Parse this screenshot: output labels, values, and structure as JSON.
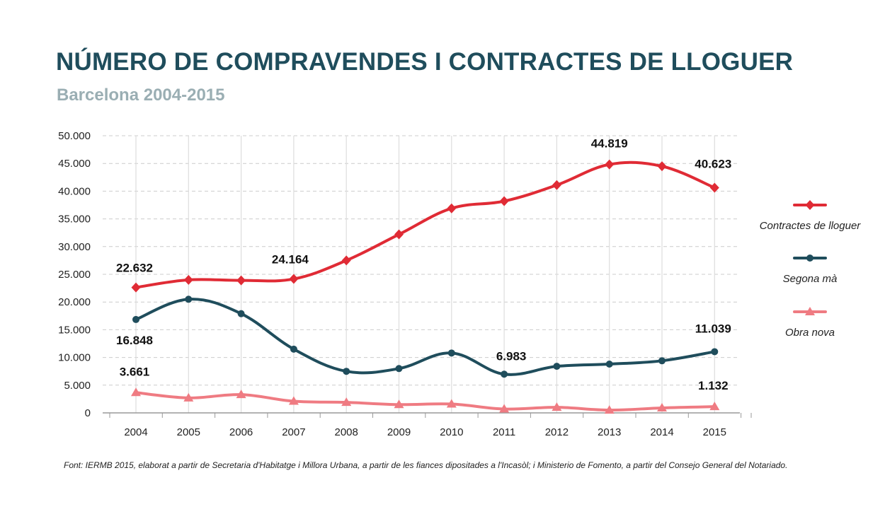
{
  "header": {
    "title": "NÚMERO DE COMPRAVENDES I CONTRACTES DE LLOGUER",
    "subtitle": "Barcelona 2004-2015"
  },
  "footer": {
    "source": "Font: IERMB 2015, elaborat a partir de Secretaria d'Habitatge i Millora Urbana, a partir de les fiances dipositades a l'Incasòl; i Ministerio de Fomento, a partir del Consejo General del Notariado."
  },
  "chart_data": {
    "type": "line",
    "title": "NÚMERO DE COMPRAVENDES I CONTRACTES DE LLOGUER",
    "subtitle": "Barcelona 2004-2015",
    "x": [
      "2004",
      "2005",
      "2006",
      "2007",
      "2008",
      "2009",
      "2010",
      "2011",
      "2012",
      "2013",
      "2014",
      "2015"
    ],
    "ylim": [
      0,
      50000
    ],
    "yticks": [
      0,
      5000,
      10000,
      15000,
      20000,
      25000,
      30000,
      35000,
      40000,
      45000,
      50000
    ],
    "ytick_labels": [
      "0",
      "5.000",
      "10.000",
      "15.000",
      "20.000",
      "25.000",
      "30.000",
      "35.000",
      "40.000",
      "45.000",
      "50.000"
    ],
    "grid": "horizontal dashed + vertical solid",
    "legend_position": "right",
    "series": [
      {
        "name": "Contractes de lloguer",
        "color": "#e02b35",
        "marker": "diamond",
        "values": [
          22632,
          24000,
          23900,
          24164,
          27500,
          32200,
          36900,
          38200,
          41100,
          44819,
          44500,
          40623
        ],
        "data_labels": [
          {
            "index": 0,
            "text": "22.632"
          },
          {
            "index": 3,
            "text": "24.164"
          },
          {
            "index": 9,
            "text": "44.819"
          },
          {
            "index": 11,
            "text": "40.623"
          }
        ]
      },
      {
        "name": "Segona mà",
        "color": "#1f4d5c",
        "marker": "circle",
        "values": [
          16848,
          20500,
          17900,
          11500,
          7500,
          8000,
          10800,
          6983,
          8400,
          8800,
          9400,
          11039
        ],
        "data_labels": [
          {
            "index": 0,
            "text": "16.848"
          },
          {
            "index": 7,
            "text": "6.983"
          },
          {
            "index": 11,
            "text": "11.039"
          }
        ]
      },
      {
        "name": "Obra nova",
        "color": "#ef7b82",
        "marker": "triangle",
        "values": [
          3661,
          2700,
          3300,
          2100,
          1900,
          1500,
          1600,
          700,
          1000,
          500,
          900,
          1132
        ],
        "data_labels": [
          {
            "index": 0,
            "text": "3.661"
          },
          {
            "index": 11,
            "text": "1.132"
          }
        ]
      }
    ]
  }
}
